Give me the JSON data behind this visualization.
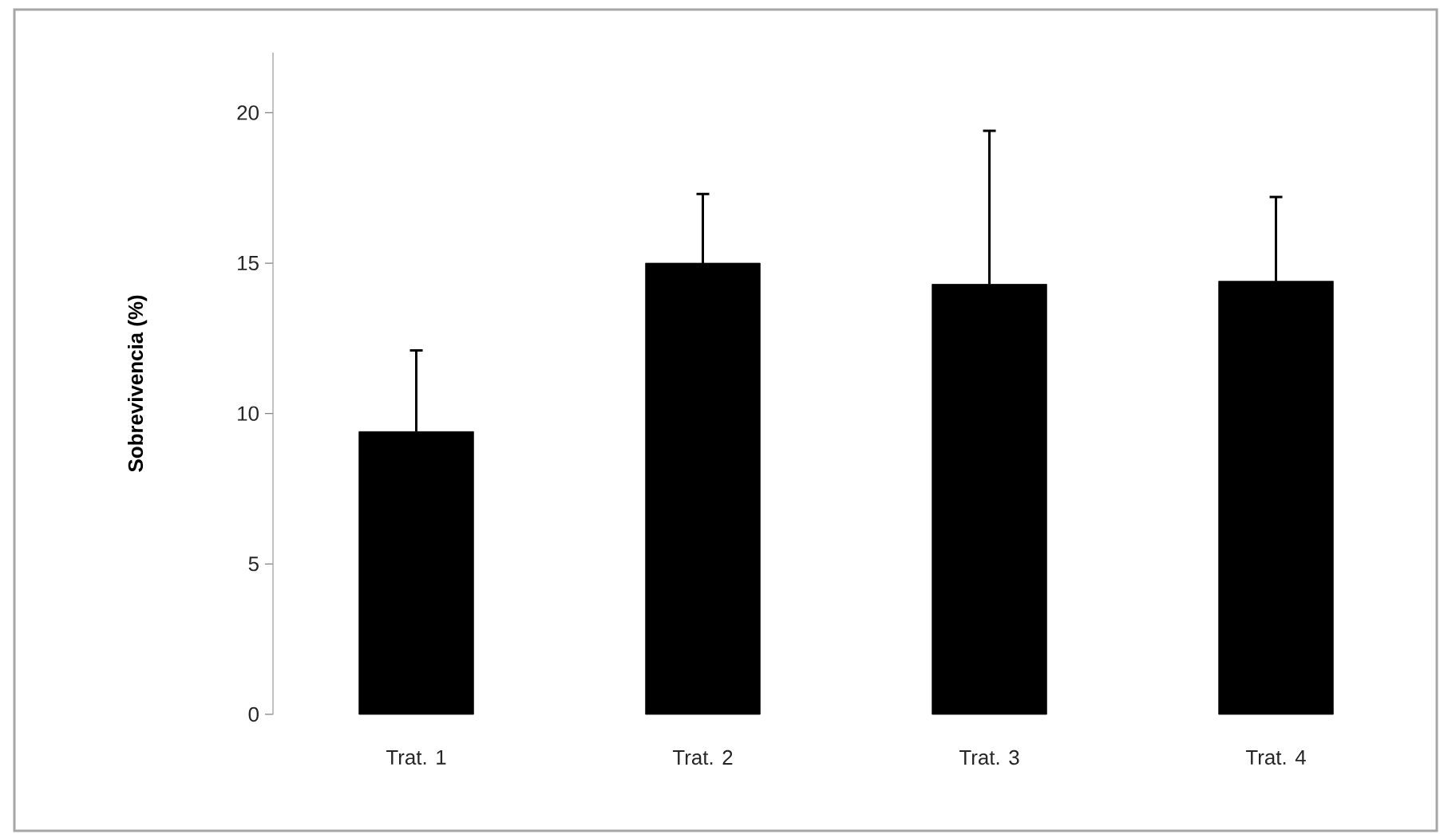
{
  "chart_data": {
    "type": "bar",
    "ylabel": "Sobrevivencia (%)",
    "categories": [
      "Trat. 1",
      "Trat. 2",
      "Trat. 3",
      "Trat. 4"
    ],
    "values": [
      9.4,
      15.0,
      14.3,
      14.4
    ],
    "errors": [
      2.7,
      2.3,
      5.1,
      2.8
    ],
    "color": "#000000",
    "ylim": [
      0,
      22
    ],
    "yticks": [
      0,
      5,
      10,
      15,
      20
    ]
  }
}
